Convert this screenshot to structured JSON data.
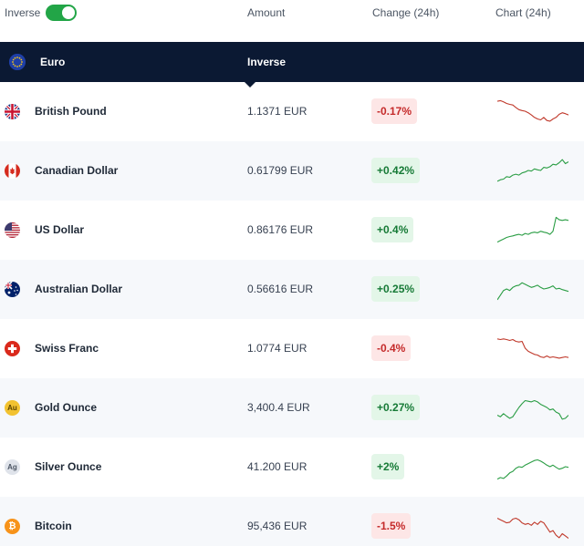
{
  "header": {
    "inverse_label": "Inverse",
    "inverse_on": true,
    "col_amount": "Amount",
    "col_change": "Change (24h)",
    "col_chart": "Chart (24h)"
  },
  "base": {
    "name": "Euro",
    "mode_label": "Inverse"
  },
  "colors": {
    "up": "#2a9d44",
    "down": "#c0392b",
    "header_bg": "#0b1933",
    "toggle": "#22a547"
  },
  "rows": [
    {
      "name": "British Pound",
      "amount": "1.1371 EUR",
      "change": "-0.17%",
      "direction": "down",
      "icon": "uk-flag-icon",
      "spark": [
        0.82,
        0.84,
        0.8,
        0.75,
        0.72,
        0.7,
        0.62,
        0.55,
        0.52,
        0.5,
        0.45,
        0.38,
        0.3,
        0.25,
        0.22,
        0.3,
        0.2,
        0.18,
        0.25,
        0.3,
        0.4,
        0.45,
        0.42,
        0.38
      ]
    },
    {
      "name": "Canadian Dollar",
      "amount": "0.61799 EUR",
      "change": "+0.42%",
      "direction": "up",
      "icon": "canada-flag-icon",
      "spark": [
        0.15,
        0.2,
        0.22,
        0.3,
        0.28,
        0.35,
        0.38,
        0.35,
        0.42,
        0.45,
        0.5,
        0.48,
        0.55,
        0.52,
        0.5,
        0.6,
        0.58,
        0.62,
        0.7,
        0.68,
        0.75,
        0.85,
        0.72,
        0.78
      ]
    },
    {
      "name": "US Dollar",
      "amount": "0.86176 EUR",
      "change": "+0.4%",
      "direction": "up",
      "icon": "us-flag-icon",
      "spark": [
        0.1,
        0.15,
        0.2,
        0.25,
        0.28,
        0.3,
        0.33,
        0.35,
        0.32,
        0.38,
        0.35,
        0.4,
        0.42,
        0.4,
        0.45,
        0.42,
        0.4,
        0.35,
        0.45,
        0.9,
        0.82,
        0.8,
        0.82,
        0.8
      ]
    },
    {
      "name": "Australian Dollar",
      "amount": "0.56616 EUR",
      "change": "+0.25%",
      "direction": "up",
      "icon": "australia-flag-icon",
      "spark": [
        0.15,
        0.3,
        0.45,
        0.5,
        0.45,
        0.55,
        0.6,
        0.62,
        0.7,
        0.65,
        0.6,
        0.55,
        0.58,
        0.62,
        0.55,
        0.5,
        0.52,
        0.55,
        0.6,
        0.5,
        0.52,
        0.48,
        0.45,
        0.42
      ]
    },
    {
      "name": "Swiss Franc",
      "amount": "1.0774 EUR",
      "change": "-0.4%",
      "direction": "down",
      "icon": "swiss-flag-icon",
      "spark": [
        0.8,
        0.78,
        0.8,
        0.78,
        0.75,
        0.78,
        0.72,
        0.7,
        0.72,
        0.5,
        0.4,
        0.35,
        0.3,
        0.28,
        0.22,
        0.2,
        0.25,
        0.2,
        0.22,
        0.2,
        0.18,
        0.2,
        0.22,
        0.2
      ]
    },
    {
      "name": "Gold Ounce",
      "amount": "3,400.4 EUR",
      "change": "+0.27%",
      "direction": "up",
      "icon": "gold-ounce-icon",
      "icon_text": "Au",
      "spark": [
        0.25,
        0.2,
        0.3,
        0.22,
        0.15,
        0.2,
        0.35,
        0.5,
        0.62,
        0.72,
        0.7,
        0.68,
        0.72,
        0.68,
        0.6,
        0.55,
        0.5,
        0.42,
        0.45,
        0.35,
        0.3,
        0.12,
        0.15,
        0.25
      ]
    },
    {
      "name": "Silver Ounce",
      "amount": "41.200 EUR",
      "change": "+2%",
      "direction": "up",
      "icon": "silver-ounce-icon",
      "icon_text": "Ag",
      "spark": [
        0.1,
        0.15,
        0.12,
        0.2,
        0.3,
        0.35,
        0.45,
        0.5,
        0.48,
        0.55,
        0.6,
        0.65,
        0.7,
        0.72,
        0.68,
        0.62,
        0.55,
        0.5,
        0.55,
        0.48,
        0.42,
        0.45,
        0.5,
        0.48
      ]
    },
    {
      "name": "Bitcoin",
      "amount": "95,436 EUR",
      "change": "-1.5%",
      "direction": "down",
      "icon": "bitcoin-icon",
      "icon_text": "₿",
      "spark": [
        0.75,
        0.7,
        0.65,
        0.6,
        0.62,
        0.72,
        0.75,
        0.7,
        0.6,
        0.55,
        0.58,
        0.52,
        0.62,
        0.55,
        0.65,
        0.6,
        0.45,
        0.3,
        0.35,
        0.2,
        0.12,
        0.25,
        0.18,
        0.1
      ]
    }
  ]
}
